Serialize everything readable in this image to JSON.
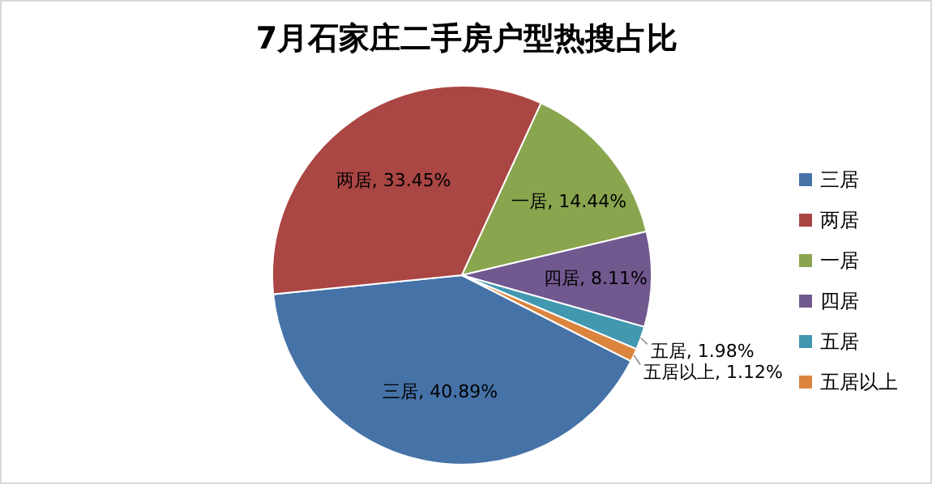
{
  "chart_data": {
    "type": "pie",
    "title": "7月石家庄二手房户型热搜占比",
    "categories": [
      "三居",
      "两居",
      "一居",
      "四居",
      "五居",
      "五居以上"
    ],
    "values": [
      40.89,
      33.45,
      14.44,
      8.11,
      1.98,
      1.12
    ],
    "value_labels": [
      "三居, 40.89%",
      "两居, 33.45%",
      "一居, 14.44%",
      "四居, 8.11%",
      "五居, 1.98%",
      "五居以上, 1.12%"
    ],
    "colors": [
      "#4572a7",
      "#aa4643",
      "#89a54e",
      "#71588f",
      "#4198af",
      "#db843d"
    ],
    "legend": "right"
  }
}
